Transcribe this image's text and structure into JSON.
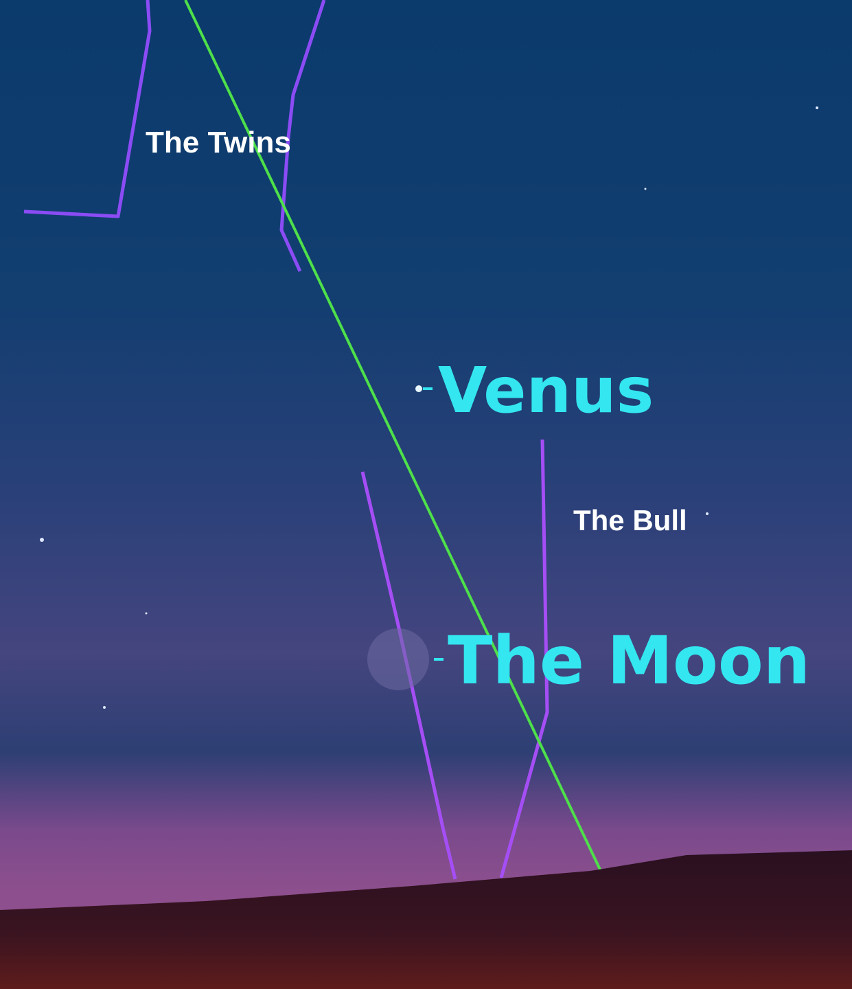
{
  "constellations": [
    {
      "label": "The Twins"
    },
    {
      "label": "The Bull"
    }
  ],
  "bodies": [
    {
      "label": "Venus"
    },
    {
      "label": "The Moon"
    }
  ]
}
